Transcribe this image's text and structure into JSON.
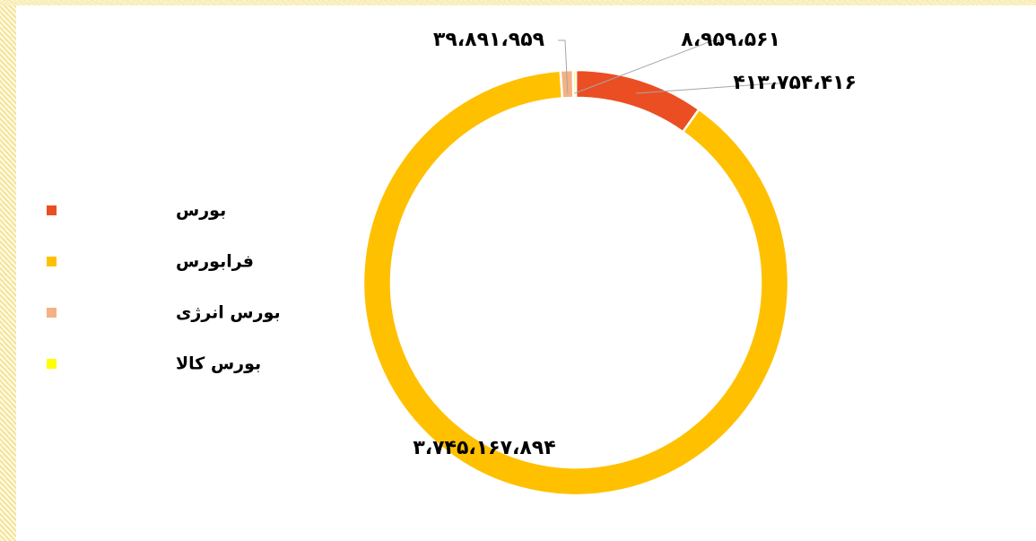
{
  "chart_data": {
    "type": "donut",
    "categories": [
      "بورس",
      "فرابورس",
      "بورس انرژی",
      "بورس کالا"
    ],
    "values": [
      413754416,
      3745167894,
      39891959,
      8959561
    ],
    "value_labels": [
      "۴۱۳،۷۵۴،۴۱۶",
      "۳،۷۴۵،۱۶۷،۸۹۴",
      "۳۹،۸۹۱،۹۵۹",
      "۸،۹۵۹،۵۶۱"
    ],
    "colors": [
      "#EB4E23",
      "#FFC000",
      "#F4B183",
      "#FFFF00"
    ],
    "legend": "left"
  }
}
